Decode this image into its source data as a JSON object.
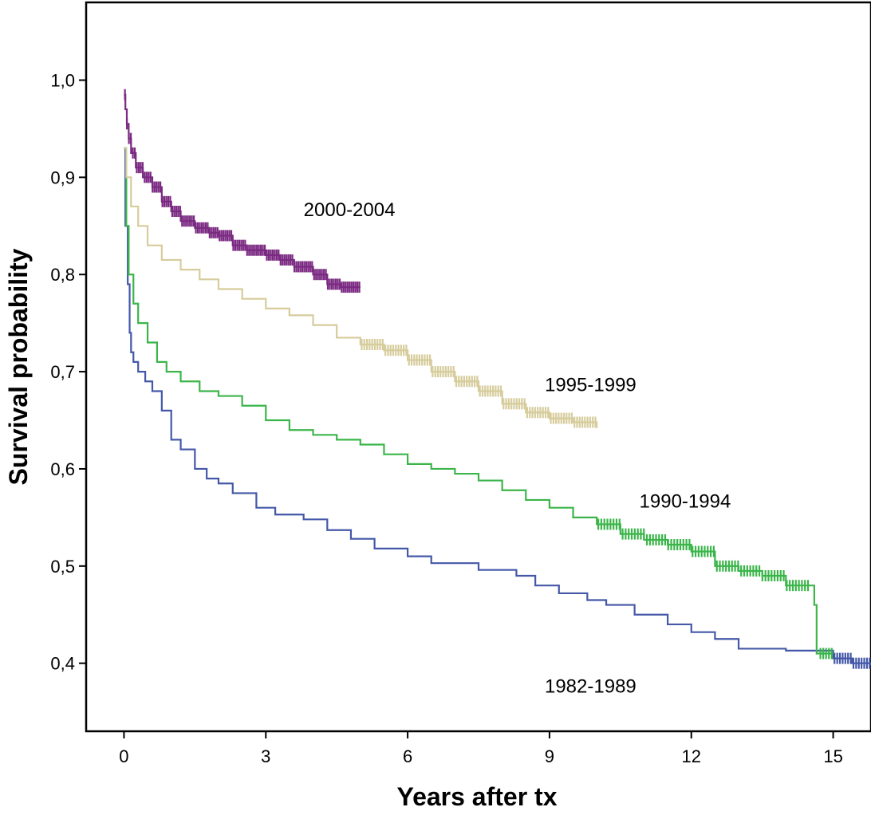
{
  "chart_data": {
    "type": "line",
    "title": "",
    "xlabel": "Years after tx",
    "ylabel": "Survival probability",
    "xlim": [
      -0.8,
      15.8
    ],
    "ylim": [
      0.33,
      1.08
    ],
    "x_ticks": [
      0,
      3,
      6,
      9,
      12,
      15
    ],
    "x_tick_labels": [
      "0",
      "3",
      "6",
      "9",
      "12",
      "15"
    ],
    "y_ticks": [
      0.4,
      0.5,
      0.6,
      0.7,
      0.8,
      0.9,
      1.0
    ],
    "y_tick_labels": [
      "0,4",
      "0,5",
      "0,6",
      "0,7",
      "0,8",
      "0,9",
      "1,0"
    ],
    "grid": false,
    "legend": "none (series labelled directly on the plot)",
    "series": [
      {
        "name": "1982-1989",
        "color": "#4458A8",
        "censor_marks": "dense at end",
        "x": [
          0,
          0.03,
          0.08,
          0.12,
          0.15,
          0.2,
          0.3,
          0.45,
          0.6,
          0.8,
          1.0,
          1.2,
          1.5,
          1.75,
          2.0,
          2.3,
          2.8,
          3.2,
          3.8,
          4.3,
          4.8,
          5.3,
          6.0,
          6.5,
          7.5,
          8.3,
          8.7,
          9.2,
          9.8,
          10.2,
          10.8,
          11.5,
          12.0,
          12.5,
          13.0,
          14.0,
          14.5,
          15.0,
          15.4,
          15.8
        ],
        "y": [
          0.93,
          0.85,
          0.79,
          0.74,
          0.72,
          0.71,
          0.7,
          0.69,
          0.68,
          0.66,
          0.63,
          0.62,
          0.6,
          0.59,
          0.585,
          0.575,
          0.56,
          0.553,
          0.548,
          0.537,
          0.528,
          0.518,
          0.51,
          0.503,
          0.496,
          0.49,
          0.48,
          0.472,
          0.465,
          0.46,
          0.45,
          0.44,
          0.432,
          0.425,
          0.415,
          0.413,
          0.413,
          0.405,
          0.4,
          0.398
        ]
      },
      {
        "name": "1990-1994",
        "color": "#3BB54A",
        "censor_marks": "dense after about 10 years",
        "x": [
          0,
          0.05,
          0.1,
          0.2,
          0.3,
          0.5,
          0.7,
          0.9,
          1.2,
          1.6,
          2.0,
          2.5,
          3.0,
          3.5,
          4.0,
          4.5,
          5.0,
          5.5,
          6.0,
          6.5,
          7.0,
          7.5,
          8.0,
          8.5,
          9.0,
          9.5,
          10.0,
          10.5,
          11.0,
          11.5,
          12.0,
          12.5,
          13.0,
          13.5,
          14.0,
          14.5,
          14.55,
          14.6,
          14.65,
          15.0
        ],
        "y": [
          0.93,
          0.85,
          0.8,
          0.77,
          0.75,
          0.73,
          0.71,
          0.7,
          0.69,
          0.68,
          0.675,
          0.665,
          0.65,
          0.64,
          0.635,
          0.63,
          0.625,
          0.615,
          0.605,
          0.6,
          0.595,
          0.588,
          0.578,
          0.568,
          0.56,
          0.55,
          0.543,
          0.533,
          0.527,
          0.522,
          0.515,
          0.5,
          0.495,
          0.49,
          0.48,
          0.48,
          0.48,
          0.46,
          0.41,
          0.41
        ]
      },
      {
        "name": "1995-1999",
        "color": "#D6CC9C",
        "censor_marks": "dense after about 5 years",
        "x": [
          0,
          0.05,
          0.15,
          0.3,
          0.5,
          0.8,
          1.2,
          1.6,
          2.0,
          2.5,
          3.0,
          3.5,
          4.0,
          4.5,
          5.0,
          5.5,
          6.0,
          6.5,
          7.0,
          7.5,
          8.0,
          8.5,
          9.0,
          9.5,
          10.0
        ],
        "y": [
          0.93,
          0.9,
          0.87,
          0.85,
          0.83,
          0.815,
          0.805,
          0.795,
          0.785,
          0.775,
          0.765,
          0.758,
          0.748,
          0.735,
          0.728,
          0.722,
          0.712,
          0.7,
          0.69,
          0.68,
          0.667,
          0.658,
          0.652,
          0.648,
          0.642
        ]
      },
      {
        "name": "2000-2004",
        "color": "#7B2A82",
        "censor_marks": "dense throughout",
        "x": [
          0,
          0.03,
          0.06,
          0.1,
          0.15,
          0.25,
          0.4,
          0.6,
          0.8,
          1.0,
          1.2,
          1.5,
          1.8,
          2.0,
          2.3,
          2.6,
          3.0,
          3.3,
          3.6,
          4.0,
          4.3,
          4.6,
          5.0
        ],
        "y": [
          0.985,
          0.97,
          0.955,
          0.94,
          0.925,
          0.91,
          0.9,
          0.89,
          0.875,
          0.865,
          0.855,
          0.848,
          0.843,
          0.84,
          0.83,
          0.825,
          0.82,
          0.815,
          0.808,
          0.8,
          0.79,
          0.787,
          0.787
        ]
      }
    ]
  }
}
